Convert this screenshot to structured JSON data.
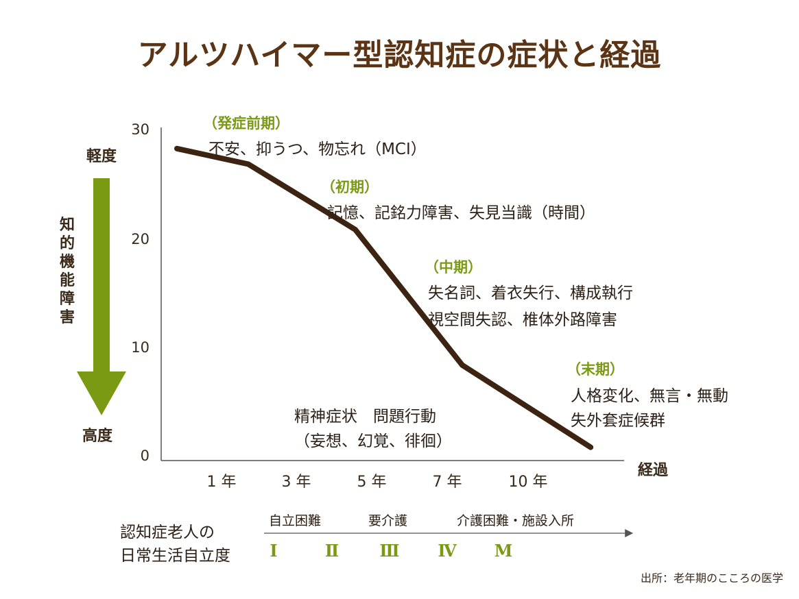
{
  "title": "アルツハイマー型認知症の症状と経過",
  "chart_data": {
    "type": "line",
    "title": "アルツハイマー型認知症の症状と経過",
    "xlabel": "経過",
    "ylim": [
      0,
      30
    ],
    "yticks": [
      "0",
      "10",
      "20",
      "30"
    ],
    "x_categories": [
      "1 年",
      "3 年",
      "5 年",
      "7 年",
      "10 年"
    ],
    "series": [
      {
        "color": "#3d2412",
        "points": [
          {
            "x": 0,
            "y": 28.1
          },
          {
            "x": 1.0,
            "y": 26.7
          },
          {
            "x": 2.5,
            "y": 20.8
          },
          {
            "x": 4.0,
            "y": 8.6
          },
          {
            "x": 5.8,
            "y": 1.2
          }
        ]
      }
    ],
    "y_axis_top_label": "軽度",
    "y_axis_bottom_label": "高度",
    "y_axis_side_label": "知的機能障害",
    "arrow_color": "#7a9a14",
    "annotations": [
      {
        "phase": "（発症前期）",
        "lines": [
          "不安、抑うつ、物忘れ（MCI）"
        ]
      },
      {
        "phase": "（初期）",
        "lines": [
          "記憶、記銘力障害、失見当識（時間）"
        ]
      },
      {
        "phase": "（中期）",
        "lines": [
          "失名詞、着衣失行、構成執行",
          "視空間失認、椎体外路障害"
        ]
      },
      {
        "phase": "（末期）",
        "lines": [
          "人格変化、無言・無動",
          "失外套症候群"
        ]
      }
    ],
    "middle_note": [
      "精神症状　問題行動",
      "（妄想、幻覚、徘徊）"
    ]
  },
  "scale": {
    "label_lines": [
      "認知症老人の",
      "日常生活自立度"
    ],
    "stages": [
      "自立困難",
      "要介護",
      "介護困難・施設入所"
    ],
    "levels": [
      "Ⅰ",
      "Ⅱ",
      "Ⅲ",
      "Ⅳ",
      "M"
    ]
  },
  "source": "出所：老年期のこころの医学"
}
